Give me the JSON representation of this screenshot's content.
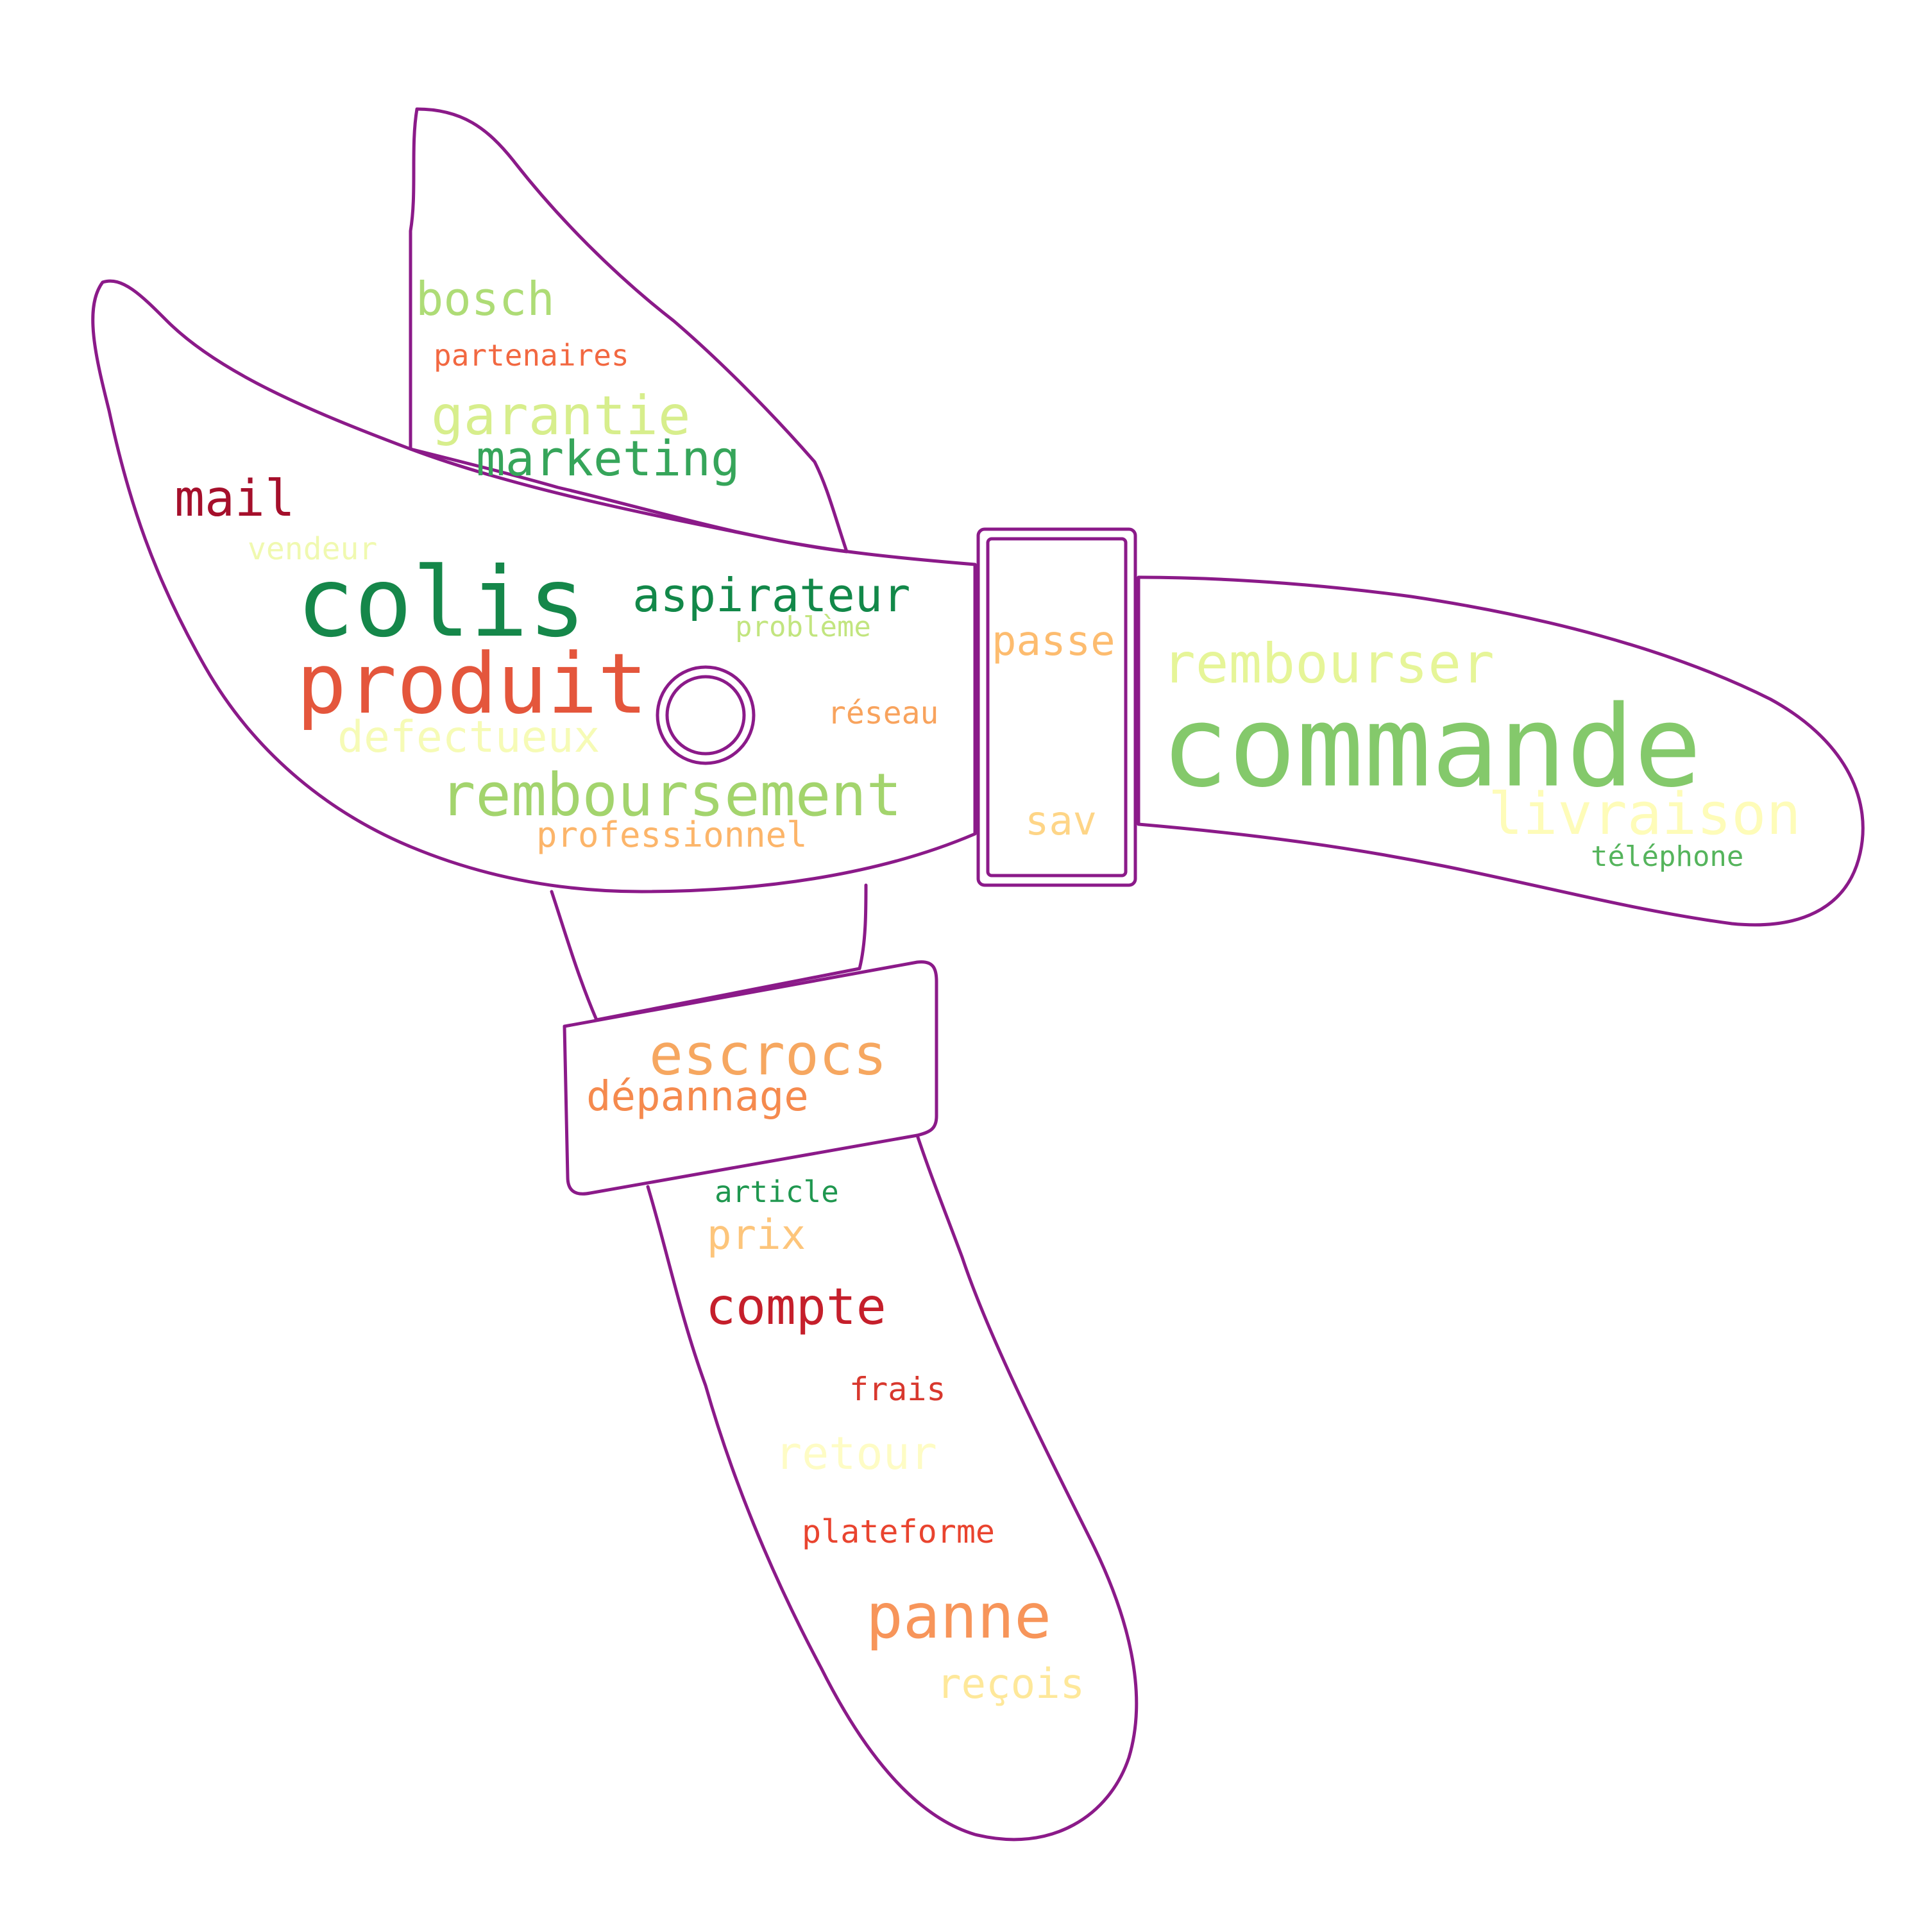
{
  "colors": {
    "outline": "#8b1a89",
    "background": "#ffffff"
  },
  "words": [
    {
      "id": "commande",
      "text": "commande",
      "color": "#84c96b"
    },
    {
      "id": "colis",
      "text": "colis",
      "color": "#15874a"
    },
    {
      "id": "produit",
      "text": "produit",
      "color": "#e4563c"
    },
    {
      "id": "remboursement",
      "text": "remboursement",
      "color": "#a3d46d"
    },
    {
      "id": "rembourser",
      "text": "rembourser",
      "color": "#e6f598"
    },
    {
      "id": "livraison",
      "text": "livraison",
      "color": "#fefcb9"
    },
    {
      "id": "escrocs",
      "text": "escrocs",
      "color": "#f6a760"
    },
    {
      "id": "panne",
      "text": "panne",
      "color": "#f7955a"
    },
    {
      "id": "compte",
      "text": "compte",
      "color": "#c51f2b"
    },
    {
      "id": "garantie",
      "text": "garantie",
      "color": "#d7ee8c"
    },
    {
      "id": "aspirateur",
      "text": "aspirateur",
      "color": "#128849"
    },
    {
      "id": "marketing",
      "text": "marketing",
      "color": "#36a55a"
    },
    {
      "id": "mail",
      "text": "mail",
      "color": "#a50f2b"
    },
    {
      "id": "bosch",
      "text": "bosch",
      "color": "#aedc76"
    },
    {
      "id": "defectueux",
      "text": "defectueux",
      "color": "#f6fbb6"
    },
    {
      "id": "depannage",
      "text": "dépannage",
      "color": "#f58a4e"
    },
    {
      "id": "passe",
      "text": "passe",
      "color": "#fdbc6f"
    },
    {
      "id": "retour",
      "text": "retour",
      "color": "#fefcc5"
    },
    {
      "id": "prix",
      "text": "prix",
      "color": "#fdc57b"
    },
    {
      "id": "recois",
      "text": "reçois",
      "color": "#fee89a"
    },
    {
      "id": "sav",
      "text": "sav",
      "color": "#fed587"
    },
    {
      "id": "professionnel",
      "text": "professionnel",
      "color": "#fcb56a"
    },
    {
      "id": "plateforme",
      "text": "plateforme",
      "color": "#e9442f"
    },
    {
      "id": "frais",
      "text": "frais",
      "color": "#d8382e"
    },
    {
      "id": "reseau",
      "text": "réseau",
      "color": "#f8a35d"
    },
    {
      "id": "article",
      "text": "article",
      "color": "#1f974f"
    },
    {
      "id": "partenaires",
      "text": "partenaires",
      "color": "#f26841"
    },
    {
      "id": "vendeur",
      "text": "vendeur",
      "color": "#f0f9b0"
    },
    {
      "id": "probleme",
      "text": "problème",
      "color": "#c2e57f"
    },
    {
      "id": "telephone",
      "text": "téléphone",
      "color": "#55b45c"
    }
  ]
}
